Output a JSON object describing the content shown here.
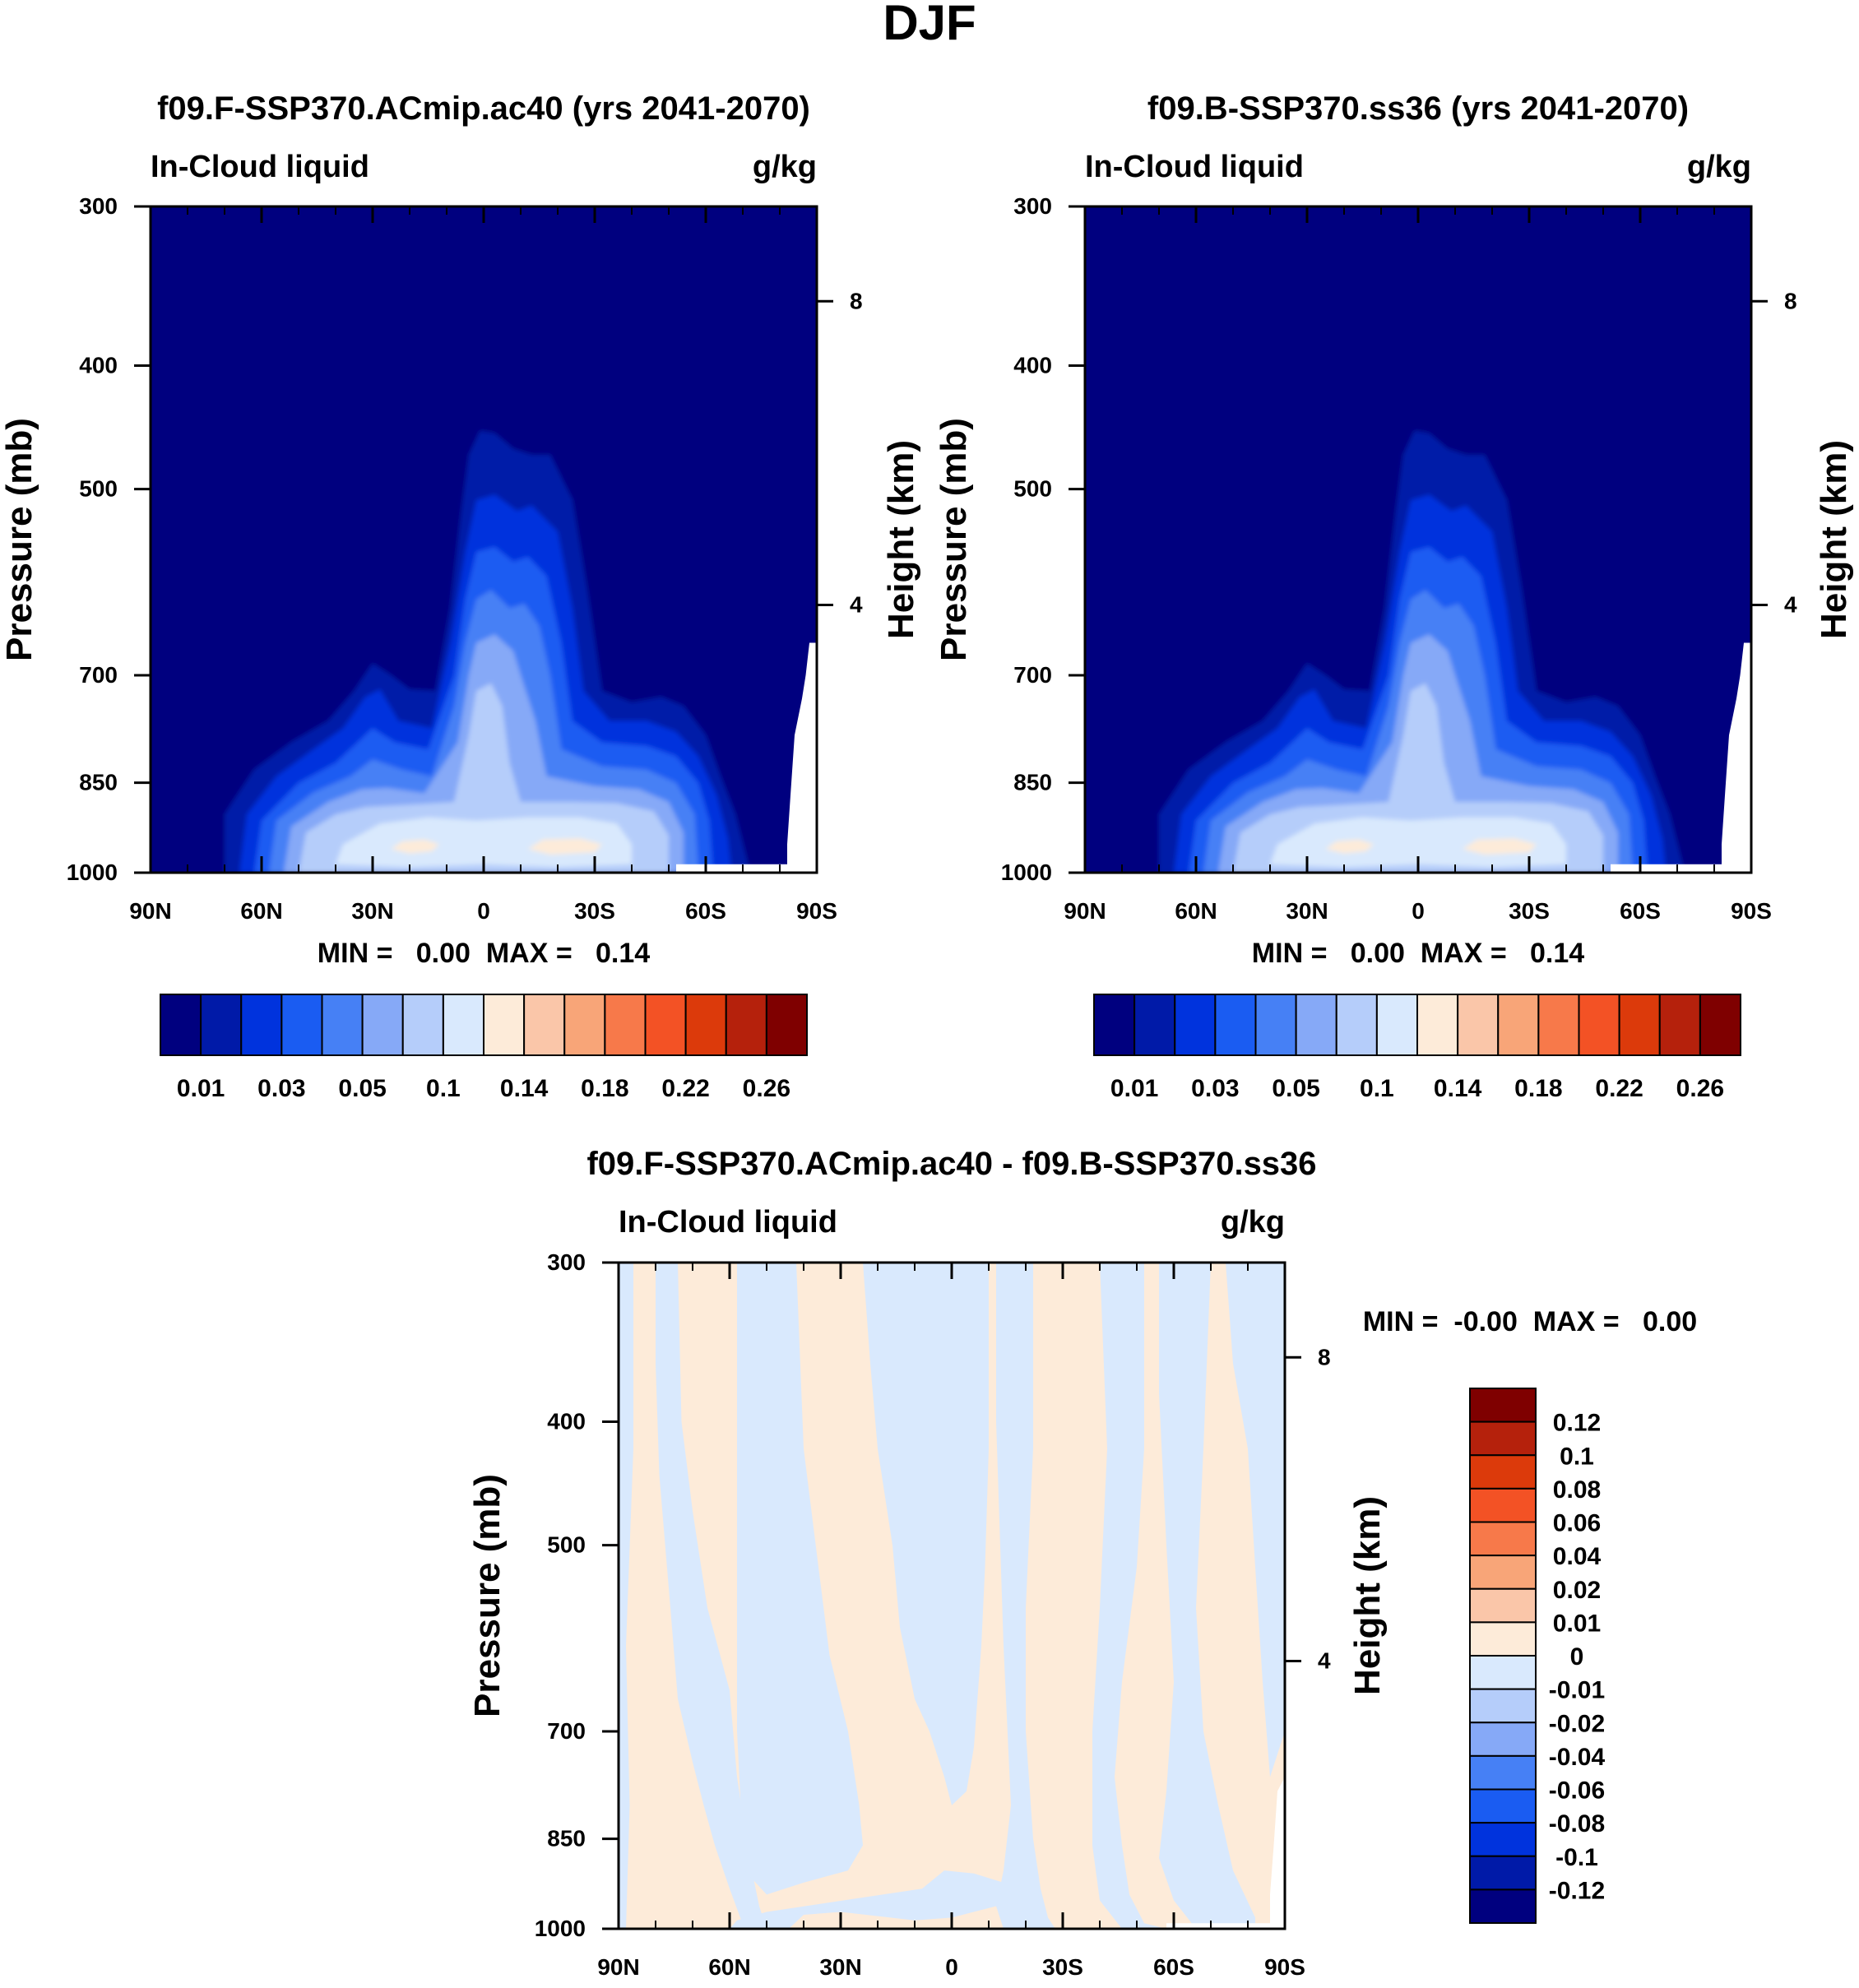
{
  "figure": {
    "title": "DJF"
  },
  "colors": {
    "abs_levels": [
      "#00007f",
      "#001aa8",
      "#0033dd",
      "#1a5cf2",
      "#4680f5",
      "#86a9f7",
      "#b5cdfa",
      "#d9e9fd",
      "#fdebd9",
      "#fac6a9",
      "#f8a578",
      "#f7794a",
      "#f35225",
      "#dc3a0b",
      "#b5210c",
      "#7f0000"
    ],
    "diff_levels": [
      "#00007f",
      "#001aa8",
      "#0033dd",
      "#1a5cf2",
      "#4680f5",
      "#86a9f7",
      "#b5cdfa",
      "#d9e9fd",
      "#fdebd9",
      "#fac6a9",
      "#f8a578",
      "#f7794a",
      "#f35225",
      "#dc3a0b",
      "#b5210c",
      "#7f0000"
    ]
  },
  "panels": [
    {
      "title": "f09.F-SSP370.ACmip.ac40 (yrs 2041-2070)",
      "left_label": "In-Cloud liquid",
      "right_label": "g/kg",
      "ylabel": "Pressure (mb)",
      "ylabel_right": "Height (km)",
      "minmax": "MIN =   0.00  MAX =   0.14",
      "colorbar_labels": [
        "0.01",
        "0.03",
        "0.05",
        "0.1",
        "0.14",
        "0.18",
        "0.22",
        "0.26"
      ]
    },
    {
      "title": "f09.B-SSP370.ss36 (yrs 2041-2070)",
      "left_label": "In-Cloud liquid",
      "right_label": "g/kg",
      "ylabel": "Pressure (mb)",
      "ylabel_right": "Height (km)",
      "minmax": "MIN =   0.00  MAX =   0.14",
      "colorbar_labels": [
        "0.01",
        "0.03",
        "0.05",
        "0.1",
        "0.14",
        "0.18",
        "0.22",
        "0.26"
      ]
    },
    {
      "title": "f09.F-SSP370.ACmip.ac40 - f09.B-SSP370.ss36",
      "left_label": "In-Cloud liquid",
      "right_label": "g/kg",
      "ylabel": "Pressure (mb)",
      "ylabel_right": "Height (km)",
      "minmax": "MIN =  -0.00  MAX =   0.00",
      "colorbar_labels": [
        "0.12",
        "0.1",
        "0.08",
        "0.06",
        "0.04",
        "0.02",
        "0.01",
        "0",
        "-0.01",
        "-0.02",
        "-0.04",
        "-0.06",
        "-0.08",
        "-0.1",
        "-0.12"
      ]
    }
  ],
  "chart_data": [
    {
      "type": "heatmap",
      "title": "f09.F-SSP370.ACmip.ac40 (yrs 2041-2070)",
      "variable": "In-Cloud liquid",
      "units": "g/kg",
      "xlabel": "",
      "ylabel": "Pressure (mb)",
      "y2label": "Height (km)",
      "x_ticks": [
        "90N",
        "60N",
        "30N",
        "0",
        "30S",
        "60S",
        "90S"
      ],
      "y_ticks": [
        300,
        400,
        500,
        700,
        850,
        1000
      ],
      "y2_ticks": [
        8,
        4
      ],
      "xlim": [
        -90,
        90
      ],
      "ylim": [
        1000,
        300
      ],
      "levels": [
        0.01,
        0.02,
        0.03,
        0.04,
        0.05,
        0.07,
        0.1,
        0.12,
        0.14,
        0.16,
        0.18,
        0.2,
        0.22,
        0.24,
        0.26
      ],
      "min": 0.0,
      "max": 0.14
    },
    {
      "type": "heatmap",
      "title": "f09.B-SSP370.ss36 (yrs 2041-2070)",
      "variable": "In-Cloud liquid",
      "units": "g/kg",
      "xlabel": "",
      "ylabel": "Pressure (mb)",
      "y2label": "Height (km)",
      "x_ticks": [
        "90N",
        "60N",
        "30N",
        "0",
        "30S",
        "60S",
        "90S"
      ],
      "y_ticks": [
        300,
        400,
        500,
        700,
        850,
        1000
      ],
      "y2_ticks": [
        8,
        4
      ],
      "xlim": [
        -90,
        90
      ],
      "ylim": [
        1000,
        300
      ],
      "levels": [
        0.01,
        0.02,
        0.03,
        0.04,
        0.05,
        0.07,
        0.1,
        0.12,
        0.14,
        0.16,
        0.18,
        0.2,
        0.22,
        0.24,
        0.26
      ],
      "min": 0.0,
      "max": 0.14
    },
    {
      "type": "heatmap",
      "title": "f09.F-SSP370.ACmip.ac40 - f09.B-SSP370.ss36",
      "variable": "In-Cloud liquid",
      "units": "g/kg",
      "xlabel": "",
      "ylabel": "Pressure (mb)",
      "y2label": "Height (km)",
      "x_ticks": [
        "90N",
        "60N",
        "30N",
        "0",
        "30S",
        "60S",
        "90S"
      ],
      "y_ticks": [
        300,
        400,
        500,
        700,
        850,
        1000
      ],
      "y2_ticks": [
        8,
        4
      ],
      "xlim": [
        -90,
        90
      ],
      "ylim": [
        1000,
        300
      ],
      "levels": [
        -0.12,
        -0.1,
        -0.08,
        -0.06,
        -0.04,
        -0.02,
        -0.01,
        0,
        0.01,
        0.02,
        0.04,
        0.06,
        0.08,
        0.1,
        0.12
      ],
      "min": -0.0,
      "max": 0.0
    }
  ]
}
